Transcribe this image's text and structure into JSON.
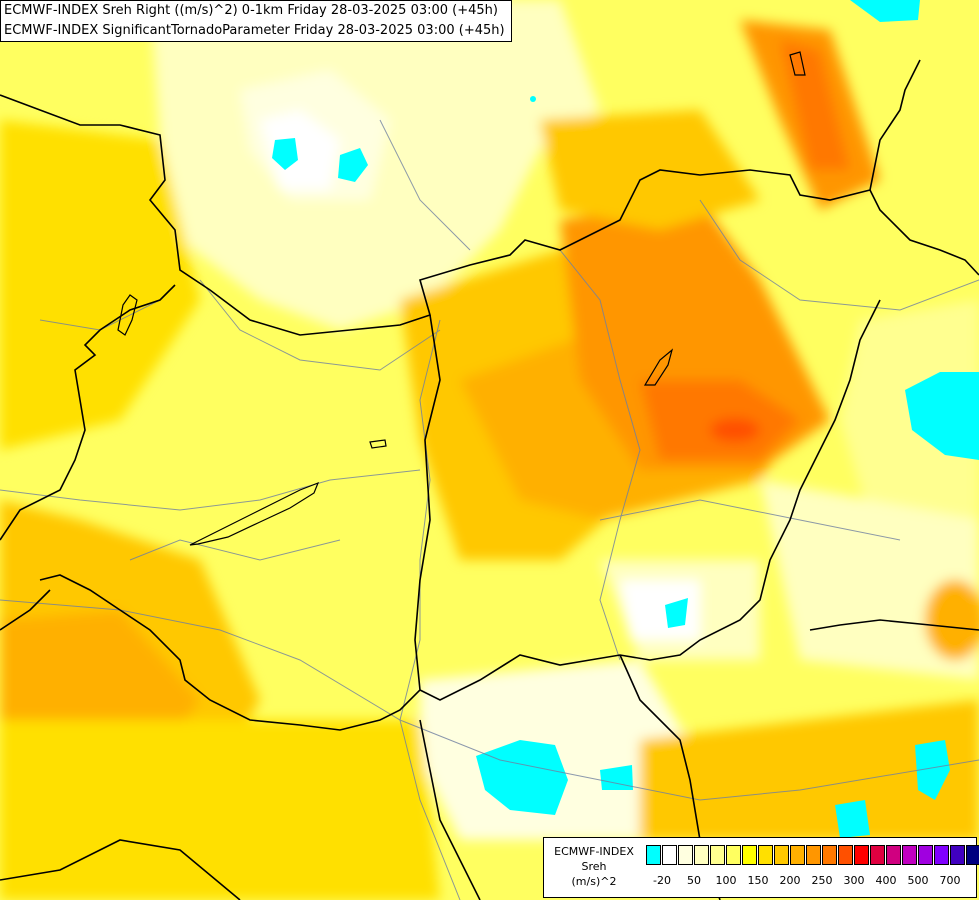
{
  "header": {
    "line1": "ECMWF-INDEX Sreh Right ((m/s)^2) 0-1km Friday 28-03-2025 03:00 (+45h)",
    "line2": "ECMWF-INDEX SignificantTornadoParameter Friday 28-03-2025 03:00 (+45h)"
  },
  "legend": {
    "title": "ECMWF-INDEX",
    "variable": "Sreh",
    "units": "(m/s)^2",
    "colors": [
      "#00ffff",
      "#ffffff",
      "#ffffe0",
      "#ffffc0",
      "#ffff90",
      "#ffff60",
      "#ffff00",
      "#ffe000",
      "#ffc800",
      "#ffb000",
      "#ff9600",
      "#ff7800",
      "#ff5000",
      "#ff0000",
      "#e00040",
      "#d00080",
      "#c000c0",
      "#a000e0",
      "#8000ff",
      "#4000c0",
      "#000080"
    ],
    "ticks": [
      {
        "label": "-20",
        "index": 0
      },
      {
        "label": "50",
        "index": 2
      },
      {
        "label": "100",
        "index": 4
      },
      {
        "label": "150",
        "index": 6
      },
      {
        "label": "200",
        "index": 8
      },
      {
        "label": "250",
        "index": 10
      },
      {
        "label": "300",
        "index": 12
      },
      {
        "label": "400",
        "index": 14
      },
      {
        "label": "500",
        "index": 16
      },
      {
        "label": "700",
        "index": 18
      }
    ]
  }
}
